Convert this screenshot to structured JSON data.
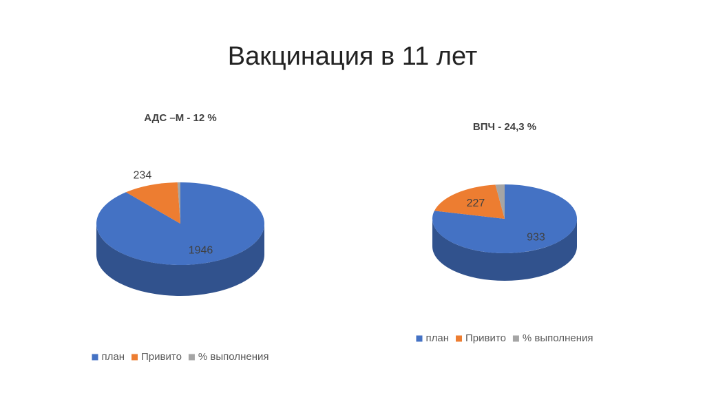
{
  "title": "Вакцинация в 11 лет",
  "chart_data": [
    {
      "type": "pie3d",
      "title": "АДС –М   - 12 %",
      "categories": [
        "план",
        "Привито",
        "% выполнения"
      ],
      "values": [
        1946,
        234,
        12
      ],
      "colors": [
        "#4472c4",
        "#ed7d31",
        "#a5a5a5"
      ]
    },
    {
      "type": "pie3d",
      "title": "ВПЧ  -    24,3 %",
      "categories": [
        "план",
        "Привито",
        "% выполнения"
      ],
      "values": [
        933,
        227,
        24.3
      ],
      "colors": [
        "#4472c4",
        "#ed7d31",
        "#a5a5a5"
      ]
    }
  ]
}
